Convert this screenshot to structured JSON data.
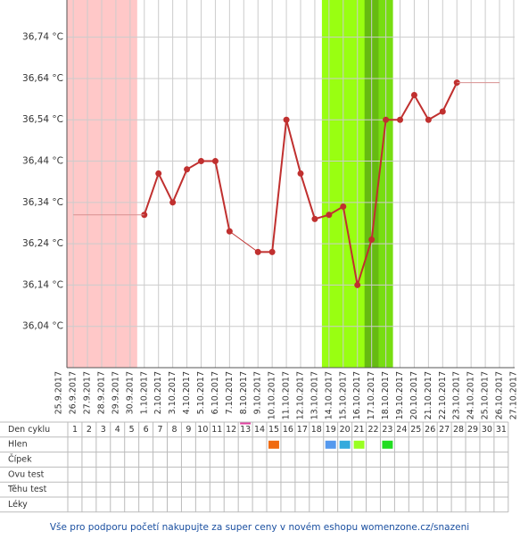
{
  "chart_data": {
    "type": "line",
    "categories": [
      "25.9.2017",
      "26.9.2017",
      "27.9.2017",
      "28.9.2017",
      "29.9.2017",
      "30.9.2017",
      "1.10.2017",
      "2.10.2017",
      "3.10.2017",
      "4.10.2017",
      "5.10.2017",
      "6.10.2017",
      "7.10.2017",
      "8.10.2017",
      "9.10.2017",
      "10.10.2017",
      "11.10.2017",
      "12.10.2017",
      "13.10.2017",
      "14.10.2017",
      "15.10.2017",
      "16.10.2017",
      "17.10.2017",
      "18.10.2017",
      "19.10.2017",
      "20.10.2017",
      "21.10.2017",
      "22.10.2017",
      "23.10.2017",
      "24.10.2017",
      "25.10.2017",
      "26.10.2017",
      "27.10.2017"
    ],
    "series": [
      {
        "color": "#c0302f",
        "values": [
          null,
          null,
          null,
          null,
          null,
          null,
          36.31,
          36.41,
          36.34,
          36.42,
          36.44,
          36.44,
          36.27,
          null,
          36.22,
          36.22,
          36.54,
          36.41,
          36.3,
          36.31,
          36.33,
          36.14,
          36.25,
          36.54,
          36.54,
          36.6,
          36.54,
          36.56,
          36.63,
          null,
          null,
          null,
          null
        ]
      },
      {
        "color": "#d89090",
        "values": [
          null,
          36.31,
          36.31,
          36.31,
          36.31,
          36.31,
          36.31,
          null,
          null,
          null,
          null,
          null,
          null,
          null,
          null,
          null,
          null,
          null,
          null,
          null,
          null,
          null,
          null,
          null,
          null,
          null,
          null,
          null,
          36.63,
          36.63,
          36.63,
          36.63,
          null
        ]
      }
    ],
    "ylim": [
      35.94,
      36.83
    ],
    "yticks": [
      {
        "value": 36.04,
        "label": "36,04 °C"
      },
      {
        "value": 36.14,
        "label": "36,14 °C"
      },
      {
        "value": 36.24,
        "label": "36,24 °C"
      },
      {
        "value": 36.34,
        "label": "36,34 °C"
      },
      {
        "value": 36.44,
        "label": "36,44 °C"
      },
      {
        "value": 36.54,
        "label": "36,54 °C"
      },
      {
        "value": 36.64,
        "label": "36,64 °C"
      },
      {
        "value": 36.74,
        "label": "36,74 °C"
      }
    ],
    "grid": true,
    "shading": [
      {
        "from": 0,
        "to": 5,
        "color": "#ffc8c8"
      },
      {
        "from": 19,
        "to": 23,
        "color": "#99ff11"
      },
      {
        "from": 22,
        "to": 22,
        "color": "#66bb11"
      },
      {
        "from": 23,
        "to": 23,
        "color": "#77dd11"
      }
    ]
  },
  "table": {
    "row_labels": [
      "Den cyklu",
      "Hlen",
      "Čípek",
      "Ovu test",
      "Těhu test",
      "Léky"
    ],
    "days": [
      "1",
      "2",
      "3",
      "4",
      "5",
      "6",
      "7",
      "8",
      "9",
      "10",
      "11",
      "12",
      "13",
      "14",
      "15",
      "16",
      "17",
      "18",
      "19",
      "20",
      "21",
      "22",
      "23",
      "24",
      "25",
      "26",
      "27",
      "28",
      "29",
      "30",
      "31"
    ],
    "today": 13,
    "hlen": [
      {
        "day": 15,
        "color": "#f06a10"
      },
      {
        "day": 19,
        "color": "#5599ee"
      },
      {
        "day": 20,
        "color": "#33aadd"
      },
      {
        "day": 21,
        "color": "#99ff22"
      },
      {
        "day": 23,
        "color": "#22dd22"
      }
    ]
  },
  "footer": "Vše pro podporu početí nakupujte za super ceny v novém eshopu womenzone.cz/snazeni"
}
